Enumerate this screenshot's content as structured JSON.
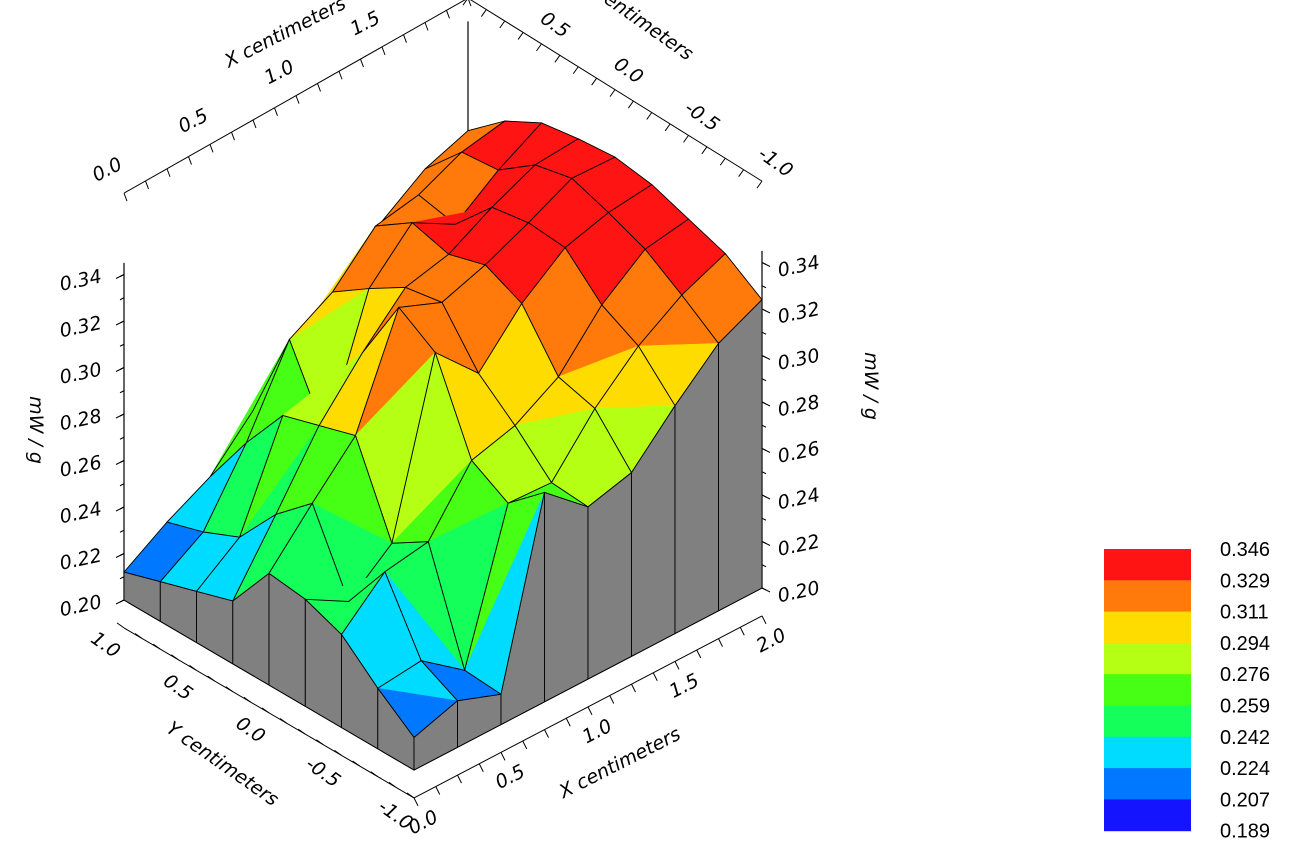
{
  "chart_data": {
    "type": "surface3d",
    "x_axis": {
      "label": "X centimeters",
      "ticks": [
        "0.0",
        "0.5",
        "1.0",
        "1.5",
        "2.0"
      ],
      "range": [
        0.0,
        2.0
      ]
    },
    "y_axis": {
      "label": "Y centimeters",
      "ticks_back": [
        "1.0",
        "0.5",
        "0.0",
        "-0.5",
        "-1.0"
      ],
      "ticks_front": [
        "1.0",
        "0.5",
        "0.0",
        "-0.5",
        "-1.0"
      ],
      "range": [
        -1.0,
        1.0
      ]
    },
    "z_axis": {
      "label": "mW / g",
      "ticks": [
        "0.20",
        "0.22",
        "0.24",
        "0.26",
        "0.28",
        "0.30",
        "0.32",
        "0.34"
      ],
      "range": [
        0.2,
        0.34
      ]
    },
    "x": [
      0.0,
      0.25,
      0.5,
      0.75,
      1.0,
      1.25,
      1.5,
      1.75,
      2.0
    ],
    "y": [
      1.0,
      0.75,
      0.5,
      0.25,
      0.0,
      -0.25,
      -0.5,
      -0.75,
      -1.0
    ],
    "z": [
      [
        0.212,
        0.223,
        0.232,
        0.25,
        0.27,
        0.283,
        0.3,
        0.312,
        0.318
      ],
      [
        0.217,
        0.228,
        0.256,
        0.29,
        0.3,
        0.318,
        0.321,
        0.329,
        0.332
      ],
      [
        0.222,
        0.235,
        0.277,
        0.258,
        0.311,
        0.329,
        0.318,
        0.331,
        0.341
      ],
      [
        0.227,
        0.254,
        0.282,
        0.303,
        0.321,
        0.325,
        0.335,
        0.343,
        0.344
      ],
      [
        0.248,
        0.268,
        0.287,
        0.332,
        0.324,
        0.33,
        0.338,
        0.347,
        0.346
      ],
      [
        0.246,
        0.235,
        0.25,
        0.322,
        0.303,
        0.323,
        0.337,
        0.342,
        0.344
      ],
      [
        0.24,
        0.257,
        0.26,
        0.285,
        0.29,
        0.301,
        0.322,
        0.336,
        0.339
      ],
      [
        0.226,
        0.228,
        0.214,
        0.276,
        0.275,
        0.297,
        0.314,
        0.326,
        0.334
      ],
      [
        0.214,
        0.22,
        0.213,
        0.29,
        0.274,
        0.279,
        0.298,
        0.315,
        0.324
      ]
    ],
    "colorbar": {
      "levels": [
        "0.346",
        "0.329",
        "0.311",
        "0.294",
        "0.276",
        "0.259",
        "0.242",
        "0.224",
        "0.207",
        "0.189"
      ],
      "colors": [
        "#ff1414",
        "#ff7a0a",
        "#ffdc00",
        "#b4ff14",
        "#46ff14",
        "#14ff5a",
        "#00dcff",
        "#0078ff",
        "#1414ff"
      ]
    },
    "side_wall_color": "#808080",
    "mesh_color": "#000000"
  }
}
